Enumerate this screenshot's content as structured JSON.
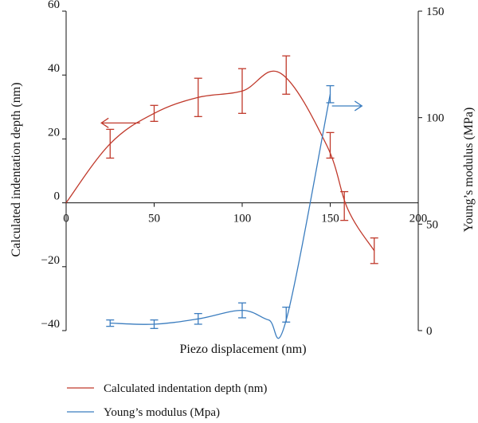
{
  "chart_data": {
    "type": "line",
    "xlabel": "Piezo displacement (nm)",
    "ylabel_left": "Calculated indentation depth (nm)",
    "ylabel_right": "Young’s modulus (MPa)",
    "xlim": [
      0,
      200
    ],
    "ylim_left": [
      -40,
      60
    ],
    "ylim_right": [
      0,
      150
    ],
    "x_ticks": [
      0,
      50,
      100,
      150,
      200
    ],
    "y_left_ticks": [
      -40,
      -20,
      0,
      20,
      40,
      60
    ],
    "y_left_tick_labels": [
      "−40",
      "−20",
      "0",
      "20",
      "40",
      "60"
    ],
    "y_right_ticks": [
      0,
      50,
      100,
      150
    ],
    "grid": false,
    "legend_position": "bottom",
    "colors": {
      "depth": "#c0392b",
      "modulus": "#3b7dbf"
    },
    "series": [
      {
        "name": "Calculated indentation depth (nm)",
        "axis": "left",
        "smooth": [
          [
            0,
            0
          ],
          [
            25,
            18.5
          ],
          [
            50,
            28
          ],
          [
            75,
            33
          ],
          [
            100,
            35
          ],
          [
            122,
            40.5
          ],
          [
            148,
            18
          ],
          [
            160,
            -2
          ],
          [
            175,
            -15
          ]
        ],
        "points": [
          {
            "x": 25,
            "y": 18.5,
            "err": 4.5
          },
          {
            "x": 50,
            "y": 28,
            "err": 2.5
          },
          {
            "x": 75,
            "y": 33,
            "err": 6
          },
          {
            "x": 100,
            "y": 35,
            "err": 7
          },
          {
            "x": 125,
            "y": 40,
            "err": 6
          },
          {
            "x": 150,
            "y": 18,
            "err": 4
          },
          {
            "x": 158,
            "y": -1,
            "err": 4.5
          },
          {
            "x": 175,
            "y": -15,
            "err": 4
          }
        ],
        "arrow": {
          "direction": "left",
          "x_from": 42,
          "x_to": 20,
          "y": 25
        }
      },
      {
        "name": "Young’s modulus (Mpa)",
        "axis": "right",
        "smooth": [
          [
            25,
            3.5
          ],
          [
            50,
            3
          ],
          [
            75,
            5.5
          ],
          [
            100,
            9.5
          ],
          [
            115,
            5
          ],
          [
            125,
            5
          ],
          [
            150,
            111
          ]
        ],
        "points": [
          {
            "x": 25,
            "y": 3.5,
            "err": 1.5
          },
          {
            "x": 50,
            "y": 3,
            "err": 2
          },
          {
            "x": 75,
            "y": 5.5,
            "err": 2.5
          },
          {
            "x": 100,
            "y": 9.5,
            "err": 3.5
          },
          {
            "x": 125,
            "y": 7.5,
            "err": 3.5
          },
          {
            "x": 150,
            "y": 111,
            "err": 4
          }
        ],
        "arrow": {
          "direction": "right",
          "x_from": 151,
          "x_to": 168,
          "y": 105.5
        }
      }
    ]
  }
}
